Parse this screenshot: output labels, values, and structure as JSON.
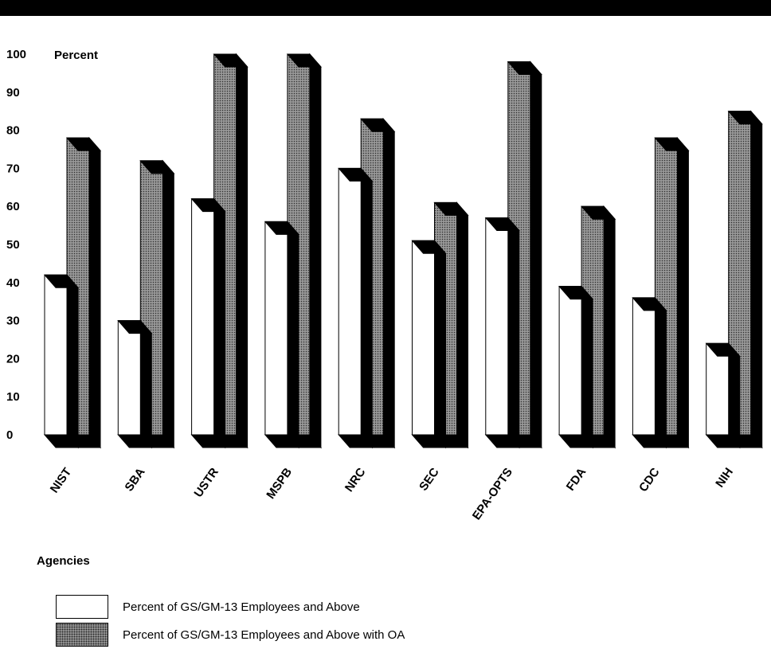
{
  "chart_data": {
    "type": "bar",
    "ylabel": "Percent",
    "xlabel": "Agencies",
    "ylim": [
      0,
      100
    ],
    "yticks": [
      100,
      90,
      80,
      70,
      60,
      50,
      40,
      30,
      20,
      10,
      0
    ],
    "categories": [
      "NIST",
      "SBA",
      "USTR",
      "MSPB",
      "NRC",
      "SEC",
      "EPA-OPTS",
      "FDA",
      "CDC",
      "NIH"
    ],
    "series": [
      {
        "name": "Percent of GS/GM-13 Employees and Above",
        "values": [
          42,
          30,
          62,
          56,
          70,
          51,
          57,
          39,
          36,
          24
        ]
      },
      {
        "name": "Percent of GS/GM-13 Employees and Above with OA",
        "values": [
          78,
          72,
          100,
          100,
          83,
          61,
          98,
          60,
          78,
          85
        ]
      }
    ],
    "grid": false,
    "legend_position": "bottom-left",
    "style": "3d"
  },
  "colors": {
    "series1": "#ffffff",
    "series2": "#7a7a7a",
    "outline": "#000000"
  }
}
